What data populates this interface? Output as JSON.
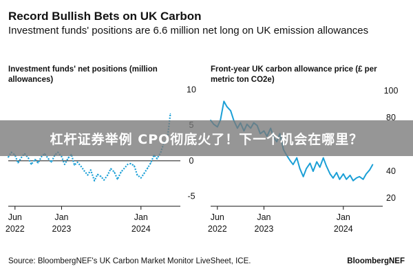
{
  "header": {
    "title": "Record Bullish Bets on UK Carbon",
    "subtitle": "Investment funds' positions are 6.6 million net long on UK emission allowances"
  },
  "overlay": {
    "banner_text": "杠杆证券举例 CPO彻底火了！下一个机会在哪里？"
  },
  "footer": {
    "source": "Source: BloombergNEF's UK Carbon Market Monitor LiveSheet, ICE.",
    "brand": "BloombergNEF"
  },
  "colors": {
    "series": "#1a9fd6",
    "zero_line": "#111111",
    "banner": "#787878"
  },
  "chart_data": [
    {
      "type": "line",
      "title": "Investment funds' net positions (million allowances)",
      "line_style": "dotted",
      "x_tick_labels": [
        [
          "Jun",
          "2022"
        ],
        [
          "Jan",
          "2023"
        ],
        [
          "Jan",
          "2024"
        ]
      ],
      "x_tick_dates": [
        "2022-06-01",
        "2023-01-01",
        "2024-01-01"
      ],
      "x_range": [
        "2022-05-01",
        "2024-06-30"
      ],
      "y_ticks": [
        10,
        5,
        0,
        -5
      ],
      "ylim": [
        -6,
        11
      ],
      "zero_line": true,
      "series": [
        {
          "x": [
            "2022-05-01",
            "2022-05-15",
            "2022-06-01",
            "2022-06-15",
            "2022-07-01",
            "2022-07-15",
            "2022-08-01",
            "2022-08-15",
            "2022-09-01",
            "2022-09-15",
            "2022-10-01",
            "2022-10-15",
            "2022-11-01",
            "2022-11-15",
            "2022-12-01",
            "2022-12-15",
            "2023-01-01",
            "2023-01-15",
            "2023-02-01",
            "2023-02-15",
            "2023-03-01",
            "2023-03-15",
            "2023-04-01",
            "2023-04-15",
            "2023-05-01",
            "2023-05-15",
            "2023-06-01",
            "2023-06-15",
            "2023-07-01",
            "2023-07-15",
            "2023-08-01",
            "2023-08-15",
            "2023-09-01",
            "2023-09-15",
            "2023-10-01",
            "2023-10-15",
            "2023-11-01",
            "2023-11-15",
            "2023-12-01",
            "2023-12-15",
            "2024-01-01",
            "2024-01-15",
            "2024-02-01",
            "2024-02-15",
            "2024-03-01",
            "2024-03-15",
            "2024-04-01",
            "2024-04-15",
            "2024-05-01",
            "2024-05-15"
          ],
          "y": [
            0.5,
            1.2,
            0.8,
            -0.3,
            0.5,
            1.0,
            0.4,
            -0.5,
            0.2,
            -0.3,
            0.6,
            1.0,
            0.3,
            -0.2,
            0.8,
            1.2,
            0.6,
            -0.5,
            0.4,
            0.9,
            -0.6,
            -0.2,
            -0.8,
            -1.4,
            -2.0,
            -1.3,
            -2.8,
            -1.9,
            -2.2,
            -2.7,
            -2.0,
            -1.1,
            -1.6,
            -2.6,
            -1.6,
            -1.1,
            -0.5,
            -0.4,
            -0.7,
            -2.0,
            -2.4,
            -1.8,
            -1.0,
            -0.3,
            0.8,
            0.3,
            1.2,
            2.5,
            3.0,
            6.6
          ]
        }
      ]
    },
    {
      "type": "line",
      "title": "Front-year UK carbon allowance price (£ per metric ton CO2e)",
      "line_style": "solid",
      "x_tick_labels": [
        [
          "Jun",
          "2022"
        ],
        [
          "Jan",
          "2023"
        ],
        [
          "Jan",
          "2024"
        ]
      ],
      "x_tick_dates": [
        "2022-06-01",
        "2023-01-01",
        "2024-01-01"
      ],
      "x_range": [
        "2022-05-01",
        "2024-06-30"
      ],
      "y_ticks": [
        100,
        80,
        40,
        20
      ],
      "ylim": [
        15,
        105
      ],
      "series": [
        {
          "x": [
            "2022-05-01",
            "2022-05-15",
            "2022-06-01",
            "2022-06-15",
            "2022-07-01",
            "2022-07-15",
            "2022-08-01",
            "2022-08-15",
            "2022-09-01",
            "2022-09-15",
            "2022-10-01",
            "2022-10-15",
            "2022-11-01",
            "2022-11-15",
            "2022-12-01",
            "2022-12-15",
            "2023-01-01",
            "2023-01-15",
            "2023-02-01",
            "2023-02-15",
            "2023-03-01",
            "2023-03-15",
            "2023-04-01",
            "2023-04-15",
            "2023-05-01",
            "2023-05-15",
            "2023-06-01",
            "2023-06-15",
            "2023-07-01",
            "2023-07-15",
            "2023-08-01",
            "2023-08-15",
            "2023-09-01",
            "2023-09-15",
            "2023-10-01",
            "2023-10-15",
            "2023-11-01",
            "2023-11-15",
            "2023-12-01",
            "2023-12-15",
            "2024-01-01",
            "2024-01-15",
            "2024-02-01",
            "2024-02-15",
            "2024-03-01",
            "2024-03-15",
            "2024-04-01",
            "2024-04-15",
            "2024-05-01",
            "2024-05-15"
          ],
          "y": [
            78,
            75,
            73,
            78,
            92,
            88,
            85,
            78,
            72,
            76,
            70,
            75,
            72,
            76,
            74,
            68,
            70,
            66,
            72,
            65,
            62,
            68,
            56,
            52,
            48,
            45,
            50,
            42,
            36,
            42,
            46,
            40,
            47,
            43,
            50,
            44,
            38,
            35,
            39,
            34,
            38,
            34,
            37,
            33,
            35,
            36,
            34,
            38,
            41,
            45
          ]
        }
      ]
    }
  ]
}
